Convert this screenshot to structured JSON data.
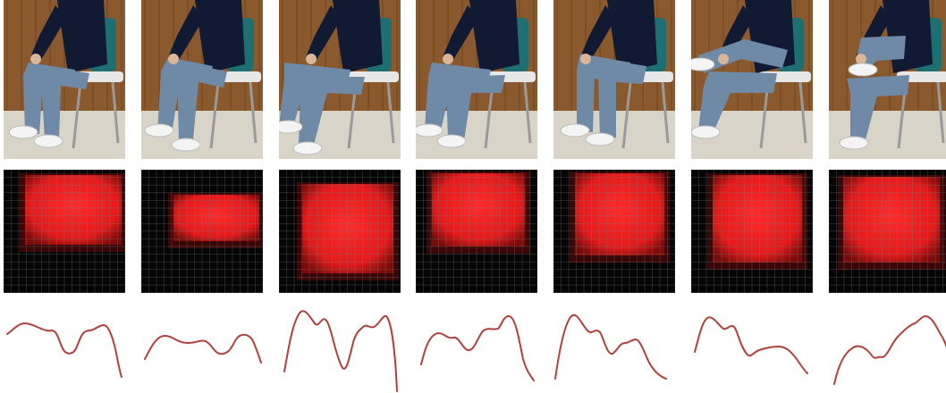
{
  "figure": {
    "rows": [
      "photo",
      "pressure-map",
      "pressure-curve"
    ],
    "colors": {
      "wall_wood": "#8a5a2e",
      "floor": "#d9d4c8",
      "jeans": "#6f8aa6",
      "jacket": "#121a33",
      "chair_seat": "#1d6f72",
      "sensor_grid_bg": "#050505",
      "heat_red": "#e31b1b",
      "curve": "#b0413e"
    },
    "panels": [
      {
        "posture": "upright"
      },
      {
        "posture": "forward-lean"
      },
      {
        "posture": "legs-extended"
      },
      {
        "posture": "back-lean"
      },
      {
        "posture": "upright-centered"
      },
      {
        "posture": "left-leg-crossed"
      },
      {
        "posture": "right-leg-crossed"
      }
    ]
  }
}
